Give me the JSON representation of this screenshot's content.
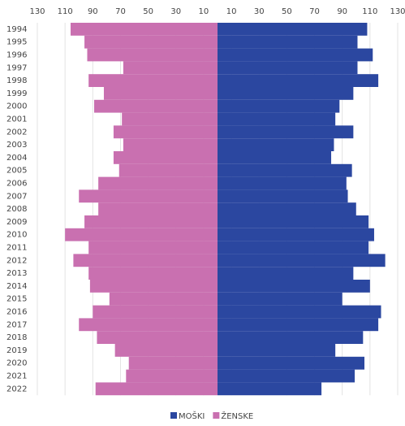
{
  "chart_data": {
    "type": "pyramid",
    "categories": [
      "1994",
      "1995",
      "1996",
      "1997",
      "1998",
      "1999",
      "2000",
      "2001",
      "2002",
      "2003",
      "2004",
      "2005",
      "2006",
      "2007",
      "2008",
      "2009",
      "2010",
      "2011",
      "2012",
      "2013",
      "2014",
      "2015",
      "2016",
      "2017",
      "2018",
      "2019",
      "2020",
      "2021",
      "2022"
    ],
    "series": [
      {
        "name": "MOŠKI",
        "color": "#2b47a0",
        "side": "right",
        "values": [
          108,
          101,
          112,
          101,
          116,
          98,
          88,
          85,
          98,
          84,
          82,
          97,
          93,
          94,
          100,
          109,
          113,
          109,
          121,
          98,
          110,
          90,
          118,
          116,
          105,
          85,
          106,
          99,
          75
        ]
      },
      {
        "name": "ŽENSKE",
        "color": "#c970b0",
        "side": "left",
        "values": [
          106,
          96,
          94,
          68,
          93,
          82,
          89,
          69,
          75,
          68,
          75,
          71,
          86,
          100,
          86,
          96,
          110,
          93,
          104,
          93,
          92,
          78,
          90,
          100,
          87,
          74,
          64,
          66,
          88
        ]
      }
    ],
    "xlim": [
      0,
      130
    ],
    "xticks": [
      10,
      30,
      50,
      70,
      90,
      110,
      130
    ],
    "grid": true,
    "legend": "bottom"
  }
}
